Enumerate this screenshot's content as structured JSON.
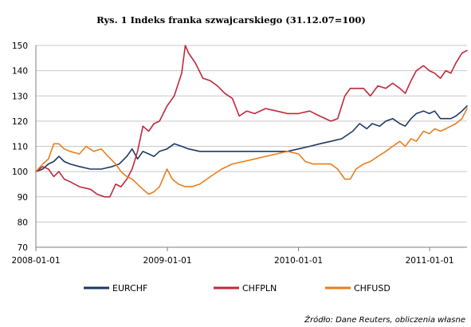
{
  "chart_data": {
    "type": "line",
    "title": "Rys. 1 Indeks franka szwajcarskiego (31.12.07=100)",
    "xlabel": "",
    "ylabel": "",
    "x_range": [
      "2008-01-01",
      "2011-04-15"
    ],
    "ylim": [
      70,
      150
    ],
    "y_ticks": [
      70,
      80,
      90,
      100,
      110,
      120,
      130,
      140,
      150
    ],
    "x_ticks": [
      "2008-01-01",
      "2009-01-01",
      "2010-01-01",
      "2011-01-01"
    ],
    "grid": {
      "horizontal": true,
      "vertical": false
    },
    "legend_position": "bottom",
    "series": [
      {
        "name": "EURCHF",
        "color": "#1f3864",
        "points": [
          [
            "2008-01-01",
            100
          ],
          [
            "2008-01-20",
            101
          ],
          [
            "2008-02-05",
            103
          ],
          [
            "2008-02-20",
            104
          ],
          [
            "2008-03-05",
            106
          ],
          [
            "2008-03-20",
            104
          ],
          [
            "2008-04-05",
            103
          ],
          [
            "2008-05-01",
            102
          ],
          [
            "2008-06-01",
            101
          ],
          [
            "2008-07-01",
            101
          ],
          [
            "2008-08-01",
            102
          ],
          [
            "2008-08-20",
            103
          ],
          [
            "2008-09-10",
            106
          ],
          [
            "2008-09-25",
            109
          ],
          [
            "2008-10-10",
            105
          ],
          [
            "2008-10-25",
            108
          ],
          [
            "2008-11-10",
            107
          ],
          [
            "2008-11-25",
            106
          ],
          [
            "2008-12-10",
            108
          ],
          [
            "2008-12-31",
            109
          ],
          [
            "2009-01-20",
            111
          ],
          [
            "2009-02-10",
            110
          ],
          [
            "2009-03-01",
            109
          ],
          [
            "2009-04-01",
            108
          ],
          [
            "2009-05-01",
            108
          ],
          [
            "2009-06-01",
            108
          ],
          [
            "2009-07-01",
            108
          ],
          [
            "2009-08-01",
            108
          ],
          [
            "2009-09-01",
            108
          ],
          [
            "2009-10-01",
            108
          ],
          [
            "2009-11-01",
            108
          ],
          [
            "2009-12-01",
            108
          ],
          [
            "2010-01-01",
            109
          ],
          [
            "2010-02-01",
            110
          ],
          [
            "2010-03-01",
            111
          ],
          [
            "2010-04-01",
            112
          ],
          [
            "2010-05-01",
            113
          ],
          [
            "2010-06-01",
            116
          ],
          [
            "2010-06-20",
            119
          ],
          [
            "2010-07-10",
            117
          ],
          [
            "2010-07-25",
            119
          ],
          [
            "2010-08-15",
            118
          ],
          [
            "2010-09-01",
            120
          ],
          [
            "2010-09-20",
            121
          ],
          [
            "2010-10-10",
            119
          ],
          [
            "2010-10-25",
            118
          ],
          [
            "2010-11-10",
            121
          ],
          [
            "2010-11-25",
            123
          ],
          [
            "2010-12-15",
            124
          ],
          [
            "2010-12-31",
            123
          ],
          [
            "2011-01-15",
            124
          ],
          [
            "2011-01-31",
            121
          ],
          [
            "2011-02-15",
            121
          ],
          [
            "2011-03-01",
            121
          ],
          [
            "2011-03-15",
            122
          ],
          [
            "2011-04-01",
            124
          ],
          [
            "2011-04-15",
            126
          ]
        ]
      },
      {
        "name": "CHFPLN",
        "color": "#c0283c",
        "points": [
          [
            "2008-01-01",
            100
          ],
          [
            "2008-01-20",
            102
          ],
          [
            "2008-02-05",
            101
          ],
          [
            "2008-02-20",
            98
          ],
          [
            "2008-03-05",
            100
          ],
          [
            "2008-03-20",
            97
          ],
          [
            "2008-04-05",
            96
          ],
          [
            "2008-05-01",
            94
          ],
          [
            "2008-06-01",
            93
          ],
          [
            "2008-06-20",
            91
          ],
          [
            "2008-07-10",
            90
          ],
          [
            "2008-07-25",
            90
          ],
          [
            "2008-08-10",
            95
          ],
          [
            "2008-08-25",
            94
          ],
          [
            "2008-09-10",
            97
          ],
          [
            "2008-09-25",
            101
          ],
          [
            "2008-10-10",
            108
          ],
          [
            "2008-10-25",
            118
          ],
          [
            "2008-11-10",
            116
          ],
          [
            "2008-11-25",
            119
          ],
          [
            "2008-12-10",
            120
          ],
          [
            "2008-12-31",
            126
          ],
          [
            "2009-01-20",
            130
          ],
          [
            "2009-02-10",
            139
          ],
          [
            "2009-02-20",
            150
          ],
          [
            "2009-03-01",
            147
          ],
          [
            "2009-03-20",
            143
          ],
          [
            "2009-04-10",
            137
          ],
          [
            "2009-05-01",
            136
          ],
          [
            "2009-05-20",
            134
          ],
          [
            "2009-06-10",
            131
          ],
          [
            "2009-07-01",
            129
          ],
          [
            "2009-07-20",
            122
          ],
          [
            "2009-08-10",
            124
          ],
          [
            "2009-09-01",
            123
          ],
          [
            "2009-10-01",
            125
          ],
          [
            "2009-11-01",
            124
          ],
          [
            "2009-12-01",
            123
          ],
          [
            "2010-01-01",
            123
          ],
          [
            "2010-02-01",
            124
          ],
          [
            "2010-03-01",
            122
          ],
          [
            "2010-04-01",
            120
          ],
          [
            "2010-04-20",
            121
          ],
          [
            "2010-05-10",
            130
          ],
          [
            "2010-05-25",
            133
          ],
          [
            "2010-06-10",
            133
          ],
          [
            "2010-07-01",
            133
          ],
          [
            "2010-07-20",
            130
          ],
          [
            "2010-08-10",
            134
          ],
          [
            "2010-09-01",
            133
          ],
          [
            "2010-09-20",
            135
          ],
          [
            "2010-10-10",
            133
          ],
          [
            "2010-10-25",
            131
          ],
          [
            "2010-11-10",
            136
          ],
          [
            "2010-11-25",
            140
          ],
          [
            "2010-12-15",
            142
          ],
          [
            "2010-12-31",
            140
          ],
          [
            "2011-01-15",
            139
          ],
          [
            "2011-01-31",
            137
          ],
          [
            "2011-02-15",
            140
          ],
          [
            "2011-03-01",
            139
          ],
          [
            "2011-03-15",
            143
          ],
          [
            "2011-04-01",
            147
          ],
          [
            "2011-04-15",
            148
          ]
        ]
      },
      {
        "name": "CHFUSD",
        "color": "#e87e1c",
        "points": [
          [
            "2008-01-01",
            100
          ],
          [
            "2008-01-20",
            103
          ],
          [
            "2008-02-05",
            105
          ],
          [
            "2008-02-20",
            111
          ],
          [
            "2008-03-05",
            111
          ],
          [
            "2008-03-20",
            109
          ],
          [
            "2008-04-05",
            108
          ],
          [
            "2008-05-01",
            107
          ],
          [
            "2008-05-20",
            110
          ],
          [
            "2008-06-10",
            108
          ],
          [
            "2008-07-01",
            109
          ],
          [
            "2008-07-20",
            106
          ],
          [
            "2008-08-10",
            103
          ],
          [
            "2008-08-25",
            100
          ],
          [
            "2008-09-10",
            98
          ],
          [
            "2008-09-25",
            97
          ],
          [
            "2008-10-10",
            95
          ],
          [
            "2008-10-25",
            93
          ],
          [
            "2008-11-10",
            91
          ],
          [
            "2008-11-25",
            92
          ],
          [
            "2008-12-10",
            94
          ],
          [
            "2008-12-31",
            101
          ],
          [
            "2009-01-15",
            97
          ],
          [
            "2009-02-01",
            95
          ],
          [
            "2009-02-20",
            94
          ],
          [
            "2009-03-10",
            94
          ],
          [
            "2009-04-01",
            95
          ],
          [
            "2009-05-01",
            98
          ],
          [
            "2009-06-01",
            101
          ],
          [
            "2009-07-01",
            103
          ],
          [
            "2009-08-01",
            104
          ],
          [
            "2009-09-01",
            105
          ],
          [
            "2009-10-01",
            106
          ],
          [
            "2009-11-01",
            107
          ],
          [
            "2009-12-01",
            108
          ],
          [
            "2010-01-01",
            107
          ],
          [
            "2010-01-20",
            104
          ],
          [
            "2010-02-10",
            103
          ],
          [
            "2010-03-01",
            103
          ],
          [
            "2010-04-01",
            103
          ],
          [
            "2010-04-20",
            101
          ],
          [
            "2010-05-10",
            97
          ],
          [
            "2010-05-25",
            97
          ],
          [
            "2010-06-10",
            101
          ],
          [
            "2010-07-01",
            103
          ],
          [
            "2010-07-20",
            104
          ],
          [
            "2010-08-10",
            106
          ],
          [
            "2010-09-01",
            108
          ],
          [
            "2010-09-20",
            110
          ],
          [
            "2010-10-10",
            112
          ],
          [
            "2010-10-25",
            110
          ],
          [
            "2010-11-10",
            113
          ],
          [
            "2010-11-25",
            112
          ],
          [
            "2010-12-15",
            116
          ],
          [
            "2010-12-31",
            115
          ],
          [
            "2011-01-15",
            117
          ],
          [
            "2011-01-31",
            116
          ],
          [
            "2011-02-15",
            117
          ],
          [
            "2011-03-01",
            118
          ],
          [
            "2011-03-15",
            119
          ],
          [
            "2011-04-01",
            121
          ],
          [
            "2011-04-15",
            125
          ]
        ]
      }
    ]
  },
  "source_note": "Źródło: Dane Reuters, obliczenia własne"
}
